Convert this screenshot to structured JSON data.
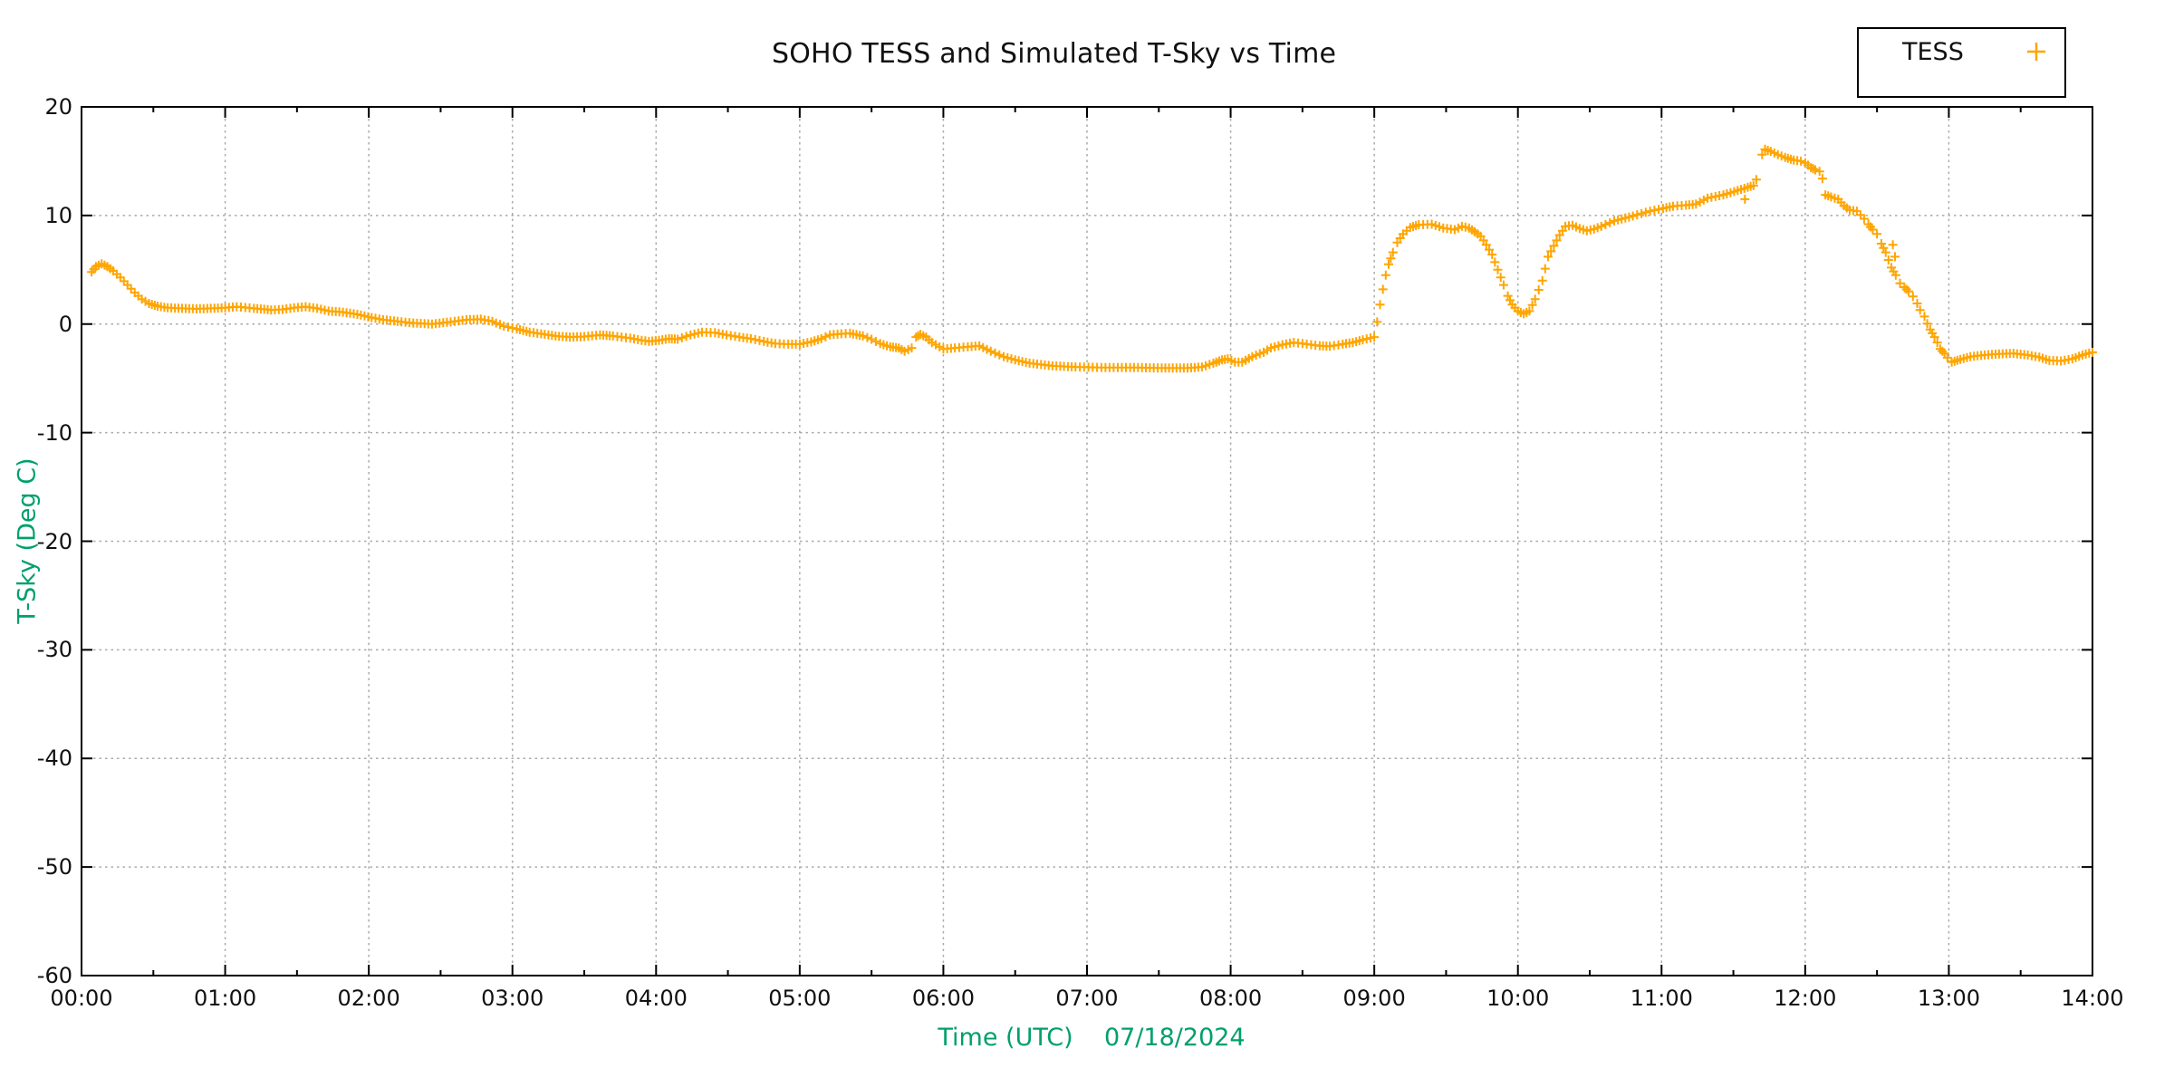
{
  "title": "SOHO TESS and Simulated T-Sky vs Time",
  "legend": {
    "entries": [
      {
        "label": "TESS",
        "marker": "plus",
        "color": "#FFA500"
      }
    ]
  },
  "axes": {
    "x": {
      "label": "Time (UTC)    07/18/2024",
      "min_hours": 0,
      "max_hours": 14,
      "major_tick_every_hours": 1,
      "minor_tick_every_hours": 0.5,
      "tick_labels": [
        "00:00",
        "01:00",
        "02:00",
        "03:00",
        "04:00",
        "05:00",
        "06:00",
        "07:00",
        "08:00",
        "09:00",
        "10:00",
        "11:00",
        "12:00",
        "13:00",
        "14:00"
      ]
    },
    "y": {
      "label": "T-Sky (Deg C)",
      "min": -60,
      "max": 20,
      "major_tick_every": 10,
      "tick_labels": [
        "20",
        "10",
        "0",
        "-10",
        "-20",
        "-30",
        "-40",
        "-50",
        "-60"
      ],
      "tick_values": [
        20,
        10,
        0,
        -10,
        -20,
        -30,
        -40,
        -50,
        -60
      ]
    }
  },
  "colors": {
    "series": "#FFA500",
    "axis_title": "#00A06B",
    "grid": "#aaaaaa",
    "border": "#000000",
    "background": "#ffffff"
  },
  "chart_data": {
    "type": "scatter",
    "title": "SOHO TESS and Simulated T-Sky vs Time",
    "xlabel": "Time (UTC)    07/18/2024",
    "ylabel": "T-Sky (Deg C)",
    "xlim_hours": [
      0,
      14
    ],
    "ylim": [
      -60,
      20
    ],
    "grid": true,
    "legend_position": "top-right-outside",
    "marker": "plus",
    "sample_interval_hours": 0.03,
    "series": [
      {
        "name": "TESS",
        "color": "#FFA500",
        "x_unit": "hours UTC on 07/18/2024",
        "y_unit": "Deg C",
        "points": [
          [
            0.07,
            4.8
          ],
          [
            0.1,
            5.3
          ],
          [
            0.14,
            5.55
          ],
          [
            0.18,
            5.3
          ],
          [
            0.22,
            4.9
          ],
          [
            0.27,
            4.3
          ],
          [
            0.32,
            3.6
          ],
          [
            0.37,
            2.9
          ],
          [
            0.42,
            2.3
          ],
          [
            0.47,
            1.9
          ],
          [
            0.53,
            1.65
          ],
          [
            0.6,
            1.5
          ],
          [
            0.7,
            1.45
          ],
          [
            0.8,
            1.4
          ],
          [
            0.9,
            1.45
          ],
          [
            1.0,
            1.5
          ],
          [
            1.08,
            1.6
          ],
          [
            1.2,
            1.45
          ],
          [
            1.32,
            1.3
          ],
          [
            1.4,
            1.35
          ],
          [
            1.48,
            1.5
          ],
          [
            1.56,
            1.6
          ],
          [
            1.64,
            1.45
          ],
          [
            1.72,
            1.2
          ],
          [
            1.82,
            1.1
          ],
          [
            1.92,
            0.9
          ],
          [
            2.02,
            0.6
          ],
          [
            2.1,
            0.4
          ],
          [
            2.2,
            0.25
          ],
          [
            2.31,
            0.1
          ],
          [
            2.44,
            0.0
          ],
          [
            2.57,
            0.2
          ],
          [
            2.68,
            0.4
          ],
          [
            2.78,
            0.45
          ],
          [
            2.86,
            0.25
          ],
          [
            2.94,
            -0.2
          ],
          [
            3.03,
            -0.45
          ],
          [
            3.12,
            -0.75
          ],
          [
            3.2,
            -0.9
          ],
          [
            3.3,
            -1.1
          ],
          [
            3.4,
            -1.2
          ],
          [
            3.5,
            -1.15
          ],
          [
            3.61,
            -1.0
          ],
          [
            3.7,
            -1.1
          ],
          [
            3.82,
            -1.3
          ],
          [
            3.9,
            -1.5
          ],
          [
            3.95,
            -1.6
          ],
          [
            4.02,
            -1.5
          ],
          [
            4.09,
            -1.35
          ],
          [
            4.15,
            -1.4
          ],
          [
            4.24,
            -1.0
          ],
          [
            4.32,
            -0.75
          ],
          [
            4.41,
            -0.8
          ],
          [
            4.49,
            -1.0
          ],
          [
            4.58,
            -1.2
          ],
          [
            4.66,
            -1.35
          ],
          [
            4.75,
            -1.6
          ],
          [
            4.83,
            -1.8
          ],
          [
            4.92,
            -1.85
          ],
          [
            5.0,
            -1.85
          ],
          [
            5.08,
            -1.65
          ],
          [
            5.15,
            -1.35
          ],
          [
            5.21,
            -1.0
          ],
          [
            5.29,
            -0.9
          ],
          [
            5.35,
            -0.85
          ],
          [
            5.44,
            -1.1
          ],
          [
            5.5,
            -1.4
          ],
          [
            5.56,
            -1.8
          ],
          [
            5.63,
            -2.1
          ],
          [
            5.69,
            -2.2
          ],
          [
            5.73,
            -2.5
          ],
          [
            5.78,
            -2.2
          ],
          [
            5.81,
            -1.2
          ],
          [
            5.84,
            -0.95
          ],
          [
            5.88,
            -1.2
          ],
          [
            5.92,
            -1.7
          ],
          [
            6.0,
            -2.3
          ],
          [
            6.08,
            -2.2
          ],
          [
            6.17,
            -2.1
          ],
          [
            6.25,
            -2.0
          ],
          [
            6.33,
            -2.5
          ],
          [
            6.42,
            -3.0
          ],
          [
            6.5,
            -3.3
          ],
          [
            6.6,
            -3.6
          ],
          [
            6.76,
            -3.85
          ],
          [
            6.92,
            -3.95
          ],
          [
            7.1,
            -4.0
          ],
          [
            7.3,
            -4.0
          ],
          [
            7.52,
            -4.05
          ],
          [
            7.7,
            -4.05
          ],
          [
            7.8,
            -3.95
          ],
          [
            7.88,
            -3.6
          ],
          [
            7.94,
            -3.3
          ],
          [
            7.98,
            -3.2
          ],
          [
            8.03,
            -3.5
          ],
          [
            8.08,
            -3.5
          ],
          [
            8.15,
            -3.0
          ],
          [
            8.23,
            -2.6
          ],
          [
            8.28,
            -2.2
          ],
          [
            8.36,
            -1.9
          ],
          [
            8.44,
            -1.7
          ],
          [
            8.53,
            -1.85
          ],
          [
            8.62,
            -2.0
          ],
          [
            8.69,
            -2.05
          ],
          [
            8.78,
            -1.85
          ],
          [
            8.85,
            -1.7
          ],
          [
            8.92,
            -1.45
          ],
          [
            9.0,
            -1.2
          ],
          [
            9.02,
            0.2
          ],
          [
            9.04,
            1.8
          ],
          [
            9.06,
            3.2
          ],
          [
            9.08,
            4.5
          ],
          [
            9.1,
            5.5
          ],
          [
            9.13,
            6.6
          ],
          [
            9.16,
            7.5
          ],
          [
            9.2,
            8.3
          ],
          [
            9.25,
            8.9
          ],
          [
            9.31,
            9.15
          ],
          [
            9.4,
            9.2
          ],
          [
            9.48,
            8.85
          ],
          [
            9.56,
            8.7
          ],
          [
            9.61,
            9.0
          ],
          [
            9.66,
            8.85
          ],
          [
            9.7,
            8.5
          ],
          [
            9.74,
            8.1
          ],
          [
            9.78,
            7.3
          ],
          [
            9.82,
            6.4
          ],
          [
            9.86,
            5.0
          ],
          [
            9.9,
            3.6
          ],
          [
            9.93,
            2.6
          ],
          [
            9.96,
            1.8
          ],
          [
            10.0,
            1.2
          ],
          [
            10.04,
            0.95
          ],
          [
            10.08,
            1.2
          ],
          [
            10.12,
            2.3
          ],
          [
            10.17,
            4.0
          ],
          [
            10.21,
            6.2
          ],
          [
            10.25,
            7.2
          ],
          [
            10.29,
            8.2
          ],
          [
            10.33,
            9.0
          ],
          [
            10.38,
            9.1
          ],
          [
            10.43,
            8.8
          ],
          [
            10.48,
            8.6
          ],
          [
            10.53,
            8.75
          ],
          [
            10.58,
            9.0
          ],
          [
            10.67,
            9.5
          ],
          [
            10.8,
            9.95
          ],
          [
            10.92,
            10.4
          ],
          [
            11.01,
            10.65
          ],
          [
            11.08,
            10.85
          ],
          [
            11.17,
            10.95
          ],
          [
            11.24,
            11.05
          ],
          [
            11.32,
            11.6
          ],
          [
            11.43,
            11.9
          ],
          [
            11.53,
            12.3
          ],
          [
            11.6,
            12.6
          ],
          [
            11.64,
            12.75
          ],
          [
            11.66,
            13.3
          ],
          [
            11.7,
            15.6
          ],
          [
            11.72,
            16.1
          ],
          [
            11.76,
            15.9
          ],
          [
            11.81,
            15.6
          ],
          [
            11.86,
            15.35
          ],
          [
            11.92,
            15.1
          ],
          [
            11.97,
            15.0
          ],
          [
            12.0,
            14.85
          ],
          [
            12.04,
            14.4
          ],
          [
            12.07,
            14.2
          ],
          [
            12.1,
            14.05
          ],
          [
            12.12,
            13.4
          ],
          [
            12.14,
            11.9
          ],
          [
            12.18,
            11.7
          ],
          [
            12.23,
            11.5
          ],
          [
            12.27,
            10.9
          ],
          [
            12.31,
            10.5
          ],
          [
            12.36,
            10.4
          ],
          [
            12.41,
            9.7
          ],
          [
            12.44,
            9.2
          ],
          [
            12.47,
            8.7
          ],
          [
            12.5,
            8.3
          ],
          [
            12.53,
            7.4
          ],
          [
            12.56,
            6.6
          ],
          [
            12.6,
            5.2
          ],
          [
            12.63,
            4.5
          ],
          [
            12.66,
            3.75
          ],
          [
            12.69,
            3.4
          ],
          [
            12.72,
            3.0
          ],
          [
            12.75,
            2.55
          ],
          [
            12.78,
            1.9
          ],
          [
            12.8,
            1.3
          ],
          [
            12.83,
            0.7
          ],
          [
            12.85,
            0.05
          ],
          [
            12.87,
            -0.5
          ],
          [
            12.9,
            -1.2
          ],
          [
            12.92,
            -1.7
          ],
          [
            12.94,
            -2.3
          ],
          [
            12.97,
            -2.7
          ],
          [
            12.99,
            -3.1
          ],
          [
            13.02,
            -3.5
          ],
          [
            13.08,
            -3.25
          ],
          [
            13.15,
            -3.0
          ],
          [
            13.25,
            -2.85
          ],
          [
            13.35,
            -2.75
          ],
          [
            13.45,
            -2.7
          ],
          [
            13.55,
            -2.85
          ],
          [
            13.63,
            -3.05
          ],
          [
            13.7,
            -3.35
          ],
          [
            13.78,
            -3.4
          ],
          [
            13.86,
            -3.2
          ],
          [
            13.93,
            -2.85
          ],
          [
            14.0,
            -2.6
          ]
        ],
        "outlier_points": [
          [
            11.58,
            11.5
          ],
          [
            12.61,
            7.3
          ],
          [
            12.625,
            6.2
          ]
        ],
        "gaps": [
          [
            11.665,
            11.695
          ],
          [
            12.125,
            12.138
          ]
        ]
      }
    ]
  },
  "plot_geometry_note": "single scatter series of orange plus markers, dotted gray grid, black frame"
}
